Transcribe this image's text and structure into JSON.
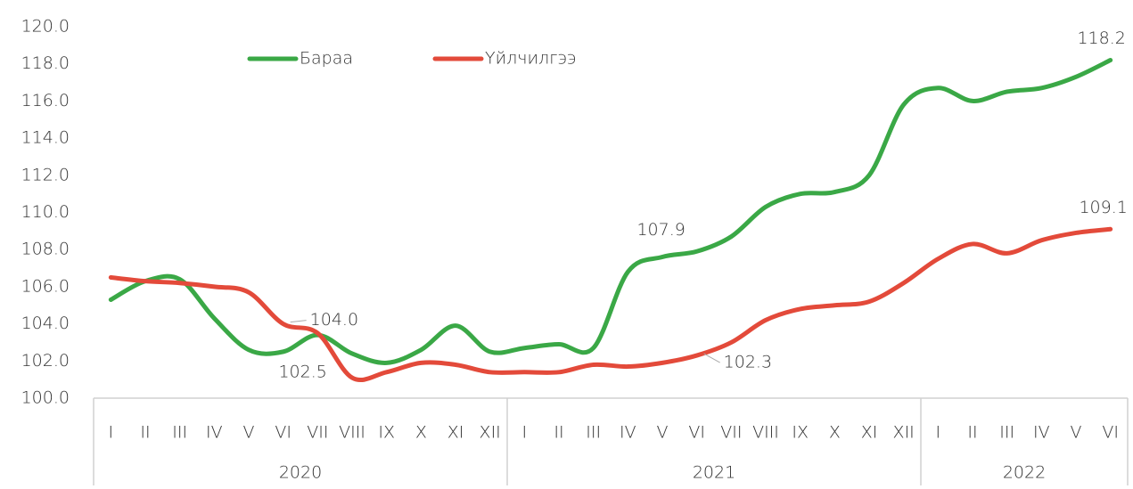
{
  "chart_data": {
    "type": "line",
    "groups": [
      {
        "name": "2020",
        "categories": [
          "I",
          "II",
          "III",
          "IV",
          "V",
          "VI",
          "VII",
          "VIII",
          "IX",
          "X",
          "XI",
          "XII"
        ]
      },
      {
        "name": "2021",
        "categories": [
          "I",
          "II",
          "III",
          "IV",
          "V",
          "VI",
          "VII",
          "VIII",
          "IX",
          "X",
          "XI",
          "XII"
        ]
      },
      {
        "name": "2022",
        "categories": [
          "I",
          "II",
          "III",
          "IV",
          "V",
          "VI"
        ]
      }
    ],
    "series": [
      {
        "name": "Бараа",
        "color": "#3aa846",
        "values": [
          105.3,
          106.3,
          106.4,
          104.3,
          102.6,
          102.5,
          103.4,
          102.4,
          101.9,
          102.6,
          103.9,
          102.5,
          102.7,
          102.9,
          102.7,
          106.8,
          107.6,
          107.9,
          108.7,
          110.3,
          111.0,
          111.1,
          112.0,
          115.8,
          116.7,
          116.0,
          116.5,
          116.7,
          117.3,
          118.2
        ],
        "value_labels": [
          null,
          null,
          null,
          null,
          null,
          "102.5",
          null,
          null,
          null,
          null,
          null,
          null,
          null,
          null,
          null,
          null,
          null,
          "107.9",
          null,
          null,
          null,
          null,
          null,
          null,
          null,
          null,
          null,
          null,
          null,
          "118.2"
        ]
      },
      {
        "name": "Үйлчилгээ",
        "color": "#e34a3a",
        "values": [
          106.5,
          106.3,
          106.2,
          106.0,
          105.7,
          104.0,
          103.5,
          101.1,
          101.4,
          101.9,
          101.8,
          101.4,
          101.4,
          101.4,
          101.8,
          101.7,
          101.9,
          102.3,
          103.0,
          104.2,
          104.8,
          105.0,
          105.2,
          106.2,
          107.5,
          108.3,
          107.8,
          108.5,
          108.9,
          109.1
        ],
        "value_labels": [
          null,
          null,
          null,
          null,
          null,
          "104.0",
          null,
          null,
          null,
          null,
          null,
          null,
          null,
          null,
          null,
          null,
          null,
          "102.3",
          null,
          null,
          null,
          null,
          null,
          null,
          null,
          null,
          null,
          null,
          null,
          "109.1"
        ]
      }
    ],
    "ylim": [
      100,
      120
    ],
    "yticks": [
      {
        "value": 100,
        "label": "100.0"
      },
      {
        "value": 102,
        "label": "102.0"
      },
      {
        "value": 104,
        "label": "104.0"
      },
      {
        "value": 106,
        "label": "106.0"
      },
      {
        "value": 108,
        "label": "108.0"
      },
      {
        "value": 110,
        "label": "110.0"
      },
      {
        "value": 112,
        "label": "112.0"
      },
      {
        "value": 114,
        "label": "114.0"
      },
      {
        "value": 116,
        "label": "116.0"
      },
      {
        "value": 118,
        "label": "118.0"
      },
      {
        "value": 120,
        "label": "120.0"
      }
    ],
    "legend": "top"
  }
}
